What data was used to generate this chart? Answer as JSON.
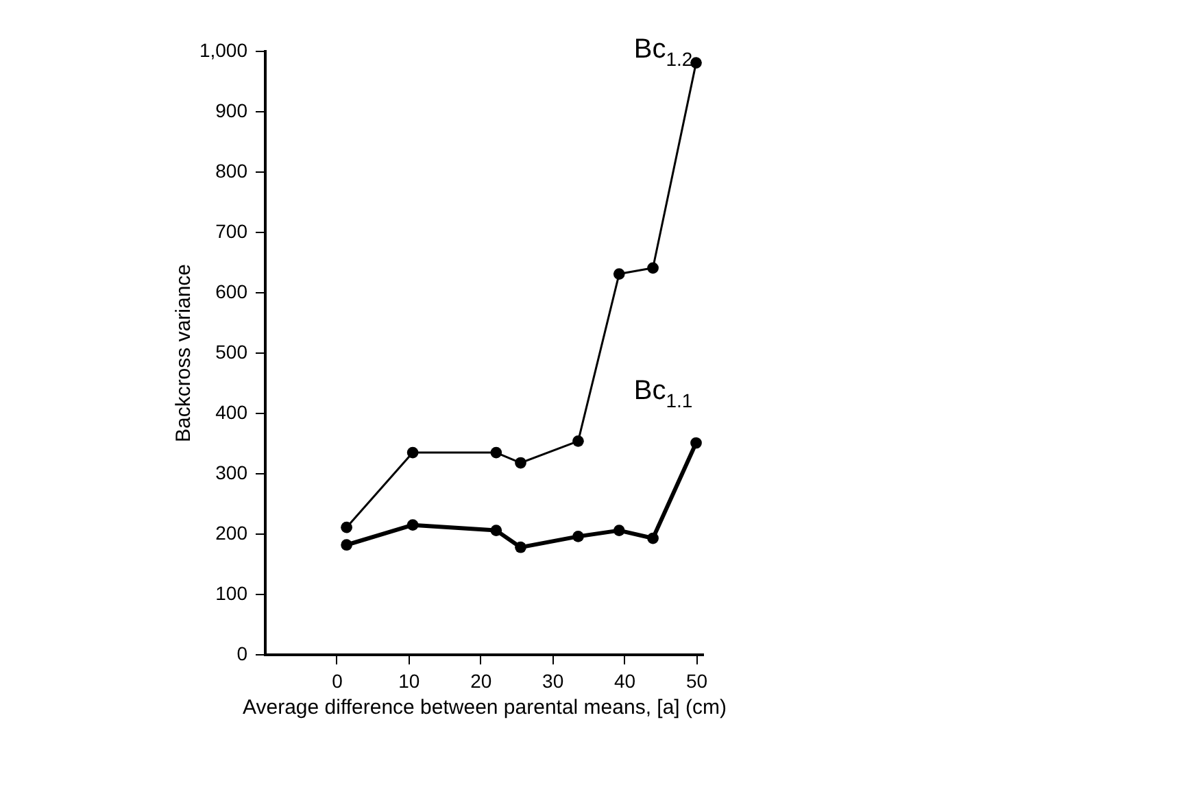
{
  "chart_data": {
    "type": "line",
    "xlabel": "Average difference between parental means, [a] (cm)",
    "ylabel": "Backcross variance",
    "x": [
      1.4,
      10.6,
      22.2,
      25.6,
      33.6,
      39.3,
      44,
      50
    ],
    "series": [
      {
        "name": "Bc$_{1.2}$",
        "color": "#000000",
        "values": [
          210,
          334,
          334,
          317,
          353,
          630,
          640,
          980
        ]
      },
      {
        "name": "Bc$_{1.1}$",
        "color": "#000000",
        "values": [
          181,
          214,
          205,
          177,
          195,
          205,
          192,
          350
        ]
      }
    ],
    "xlim": [
      -10,
      51
    ],
    "xticks": [
      0,
      10,
      20,
      30,
      40,
      50
    ],
    "ylim": [
      0,
      1000
    ],
    "yticks": [
      0,
      100,
      200,
      300,
      400,
      500,
      600,
      700,
      800,
      900,
      {
        "value": 1000,
        "label": "1,000"
      }
    ],
    "marker": "circle",
    "line_style": "solid"
  }
}
